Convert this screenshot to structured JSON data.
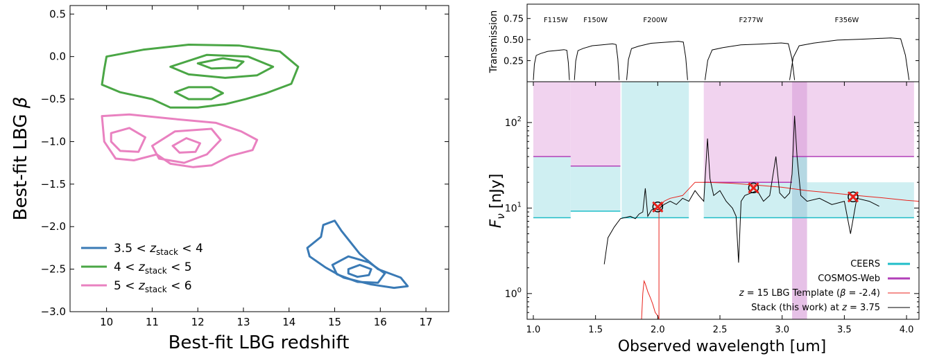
{
  "chart_data": [
    {
      "type": "contour",
      "xlabel": "Best-fit LBG redshift",
      "ylabel_prefix": "Best-fit LBG ",
      "ylabel_symbol": "β",
      "xlim": [
        9.2,
        17.5
      ],
      "ylim": [
        -3.0,
        0.6
      ],
      "xticks": [
        10,
        11,
        12,
        13,
        14,
        15,
        16,
        17
      ],
      "xtick_labels": [
        "10",
        "11",
        "12",
        "13",
        "14",
        "15",
        "16",
        "17"
      ],
      "yticks": [
        0.5,
        0.0,
        -0.5,
        -1.0,
        -1.5,
        -2.0,
        -2.5,
        -3.0
      ],
      "ytick_labels": [
        "0.5",
        "0.0",
        "−0.5",
        "−1.0",
        "−1.5",
        "−2.0",
        "−2.5",
        "−3.0"
      ],
      "legend_position": "lower-left",
      "series": [
        {
          "name": "3.5 < z_stack < 4",
          "label_pre": "3.5 < ",
          "label_var": "z",
          "label_sub": "stack",
          "label_post": " < 4",
          "color": "#3a7ab5",
          "levels": [
            [
              [
                14.4,
                -2.25
              ],
              [
                14.7,
                -2.12
              ],
              [
                14.75,
                -1.98
              ],
              [
                15.0,
                -1.93
              ],
              [
                15.15,
                -2.05
              ],
              [
                15.55,
                -2.32
              ],
              [
                15.95,
                -2.5
              ],
              [
                16.45,
                -2.6
              ],
              [
                16.6,
                -2.7
              ],
              [
                16.3,
                -2.72
              ],
              [
                15.8,
                -2.68
              ],
              [
                15.2,
                -2.6
              ],
              [
                14.8,
                -2.48
              ],
              [
                14.45,
                -2.35
              ]
            ],
            [
              [
                14.95,
                -2.45
              ],
              [
                15.3,
                -2.35
              ],
              [
                15.75,
                -2.42
              ],
              [
                16.1,
                -2.55
              ],
              [
                15.95,
                -2.66
              ],
              [
                15.5,
                -2.65
              ],
              [
                15.05,
                -2.56
              ]
            ],
            [
              [
                15.3,
                -2.5
              ],
              [
                15.55,
                -2.45
              ],
              [
                15.8,
                -2.5
              ],
              [
                15.75,
                -2.57
              ],
              [
                15.5,
                -2.59
              ],
              [
                15.3,
                -2.55
              ]
            ]
          ]
        },
        {
          "name": "4 < z_stack < 5",
          "label_pre": "4 < ",
          "label_var": "z",
          "label_sub": "stack",
          "label_post": " < 5",
          "color": "#4aa645",
          "levels": [
            [
              [
                10.0,
                0.0
              ],
              [
                10.8,
                0.08
              ],
              [
                11.8,
                0.14
              ],
              [
                12.9,
                0.13
              ],
              [
                13.8,
                0.06
              ],
              [
                14.2,
                -0.12
              ],
              [
                14.05,
                -0.32
              ],
              [
                13.5,
                -0.43
              ],
              [
                13.05,
                -0.5
              ],
              [
                12.6,
                -0.56
              ],
              [
                12.0,
                -0.6
              ],
              [
                11.4,
                -0.6
              ],
              [
                11.0,
                -0.5
              ],
              [
                10.3,
                -0.42
              ],
              [
                9.9,
                -0.33
              ],
              [
                9.95,
                -0.15
              ]
            ],
            [
              [
                11.4,
                -0.12
              ],
              [
                12.2,
                0.02
              ],
              [
                13.1,
                0.0
              ],
              [
                13.65,
                -0.12
              ],
              [
                13.3,
                -0.22
              ],
              [
                12.6,
                -0.25
              ],
              [
                11.8,
                -0.21
              ]
            ],
            [
              [
                12.0,
                -0.08
              ],
              [
                12.55,
                -0.02
              ],
              [
                13.0,
                -0.06
              ],
              [
                12.85,
                -0.13
              ],
              [
                12.3,
                -0.14
              ]
            ],
            [
              [
                11.5,
                -0.42
              ],
              [
                11.8,
                -0.36
              ],
              [
                12.3,
                -0.36
              ],
              [
                12.55,
                -0.43
              ],
              [
                12.3,
                -0.5
              ],
              [
                11.8,
                -0.5
              ]
            ]
          ]
        },
        {
          "name": "5 < z_stack < 6",
          "label_pre": "5 < ",
          "label_var": "z",
          "label_sub": "stack",
          "label_post": " < 6",
          "color": "#e981c0",
          "levels": [
            [
              [
                9.9,
                -0.7
              ],
              [
                10.5,
                -0.68
              ],
              [
                11.4,
                -0.73
              ],
              [
                12.4,
                -0.78
              ],
              [
                12.95,
                -0.88
              ],
              [
                13.3,
                -0.98
              ],
              [
                13.2,
                -1.1
              ],
              [
                12.7,
                -1.17
              ],
              [
                12.3,
                -1.28
              ],
              [
                11.9,
                -1.3
              ],
              [
                11.4,
                -1.26
              ],
              [
                11.1,
                -1.15
              ],
              [
                10.6,
                -1.22
              ],
              [
                10.2,
                -1.2
              ],
              [
                9.95,
                -1.0
              ]
            ],
            [
              [
                10.1,
                -0.9
              ],
              [
                10.5,
                -0.84
              ],
              [
                10.85,
                -0.95
              ],
              [
                10.7,
                -1.12
              ],
              [
                10.3,
                -1.11
              ],
              [
                10.1,
                -1.0
              ]
            ],
            [
              [
                11.0,
                -1.05
              ],
              [
                11.5,
                -0.88
              ],
              [
                12.3,
                -0.85
              ],
              [
                12.5,
                -0.98
              ],
              [
                12.2,
                -1.15
              ],
              [
                11.7,
                -1.25
              ],
              [
                11.15,
                -1.2
              ]
            ],
            [
              [
                11.45,
                -1.05
              ],
              [
                11.75,
                -0.96
              ],
              [
                12.05,
                -1.02
              ],
              [
                11.95,
                -1.12
              ],
              [
                11.6,
                -1.13
              ]
            ]
          ]
        }
      ]
    },
    {
      "type": "line",
      "panel": "transmission",
      "ylabel": "Transmission",
      "xlim": [
        0.95,
        4.1
      ],
      "ylim": [
        0.0,
        0.92
      ],
      "yticks": [
        0.25,
        0.5,
        0.75
      ],
      "ytick_labels": [
        "0.25",
        "0.50",
        "0.75"
      ],
      "filters": [
        {
          "name": "F115W",
          "label_x": 1.18,
          "edges": [
            1.0,
            1.29
          ],
          "level": 0.38
        },
        {
          "name": "F150W",
          "label_x": 1.5,
          "edges": [
            1.33,
            1.69
          ],
          "level": 0.45
        },
        {
          "name": "F200W",
          "label_x": 1.98,
          "edges": [
            1.75,
            2.24
          ],
          "level": 0.48
        },
        {
          "name": "F277W",
          "label_x": 2.75,
          "edges": [
            2.38,
            3.1
          ],
          "level": 0.46
        },
        {
          "name": "F356W",
          "label_x": 3.52,
          "edges": [
            3.06,
            4.02
          ],
          "level": 0.52
        }
      ]
    },
    {
      "type": "line",
      "panel": "sed",
      "xlabel": "Observed wavelength [um]",
      "ylabel_symbol": "F",
      "ylabel_sub": "ν",
      "ylabel_unit": " [nJy]",
      "xlim": [
        0.95,
        4.1
      ],
      "ylim_log": [
        0.5,
        300
      ],
      "xticks": [
        1.0,
        1.5,
        2.0,
        2.5,
        3.0,
        3.5,
        4.0
      ],
      "xtick_labels": [
        "1.0",
        "1.5",
        "2.0",
        "2.5",
        "3.0",
        "3.5",
        "4.0"
      ],
      "yticks": [
        1,
        10,
        100
      ],
      "ytick_base": "10",
      "ytick_exps": [
        "0",
        "1",
        "2"
      ],
      "legend_position": "lower-right",
      "depth_bands": {
        "CEERS": {
          "color": "#1fbdc8",
          "fill": "#cfeff2",
          "limits": [
            {
              "x": [
                1.0,
                1.3
              ],
              "y": 7.7
            },
            {
              "x": [
                1.3,
                1.7
              ],
              "y": 9.2
            },
            {
              "x": [
                1.71,
                2.25
              ],
              "y": 7.7
            },
            {
              "x": [
                2.37,
                4.06
              ],
              "y": 7.7
            }
          ]
        },
        "COSMOS-Web": {
          "color": "#b23fb8",
          "fill": "#f1d3ef",
          "limits": [
            {
              "x": [
                1.0,
                1.3
              ],
              "y": 40
            },
            {
              "x": [
                1.3,
                1.7
              ],
              "y": 31
            },
            {
              "x": [
                2.37,
                3.08
              ],
              "y": 20
            },
            {
              "x": [
                3.08,
                4.06
              ],
              "y": 40
            }
          ]
        },
        "overlap_band": [
          3.08,
          3.2
        ]
      },
      "markers": [
        {
          "x": 2.0,
          "y": 10.3
        },
        {
          "x": 2.77,
          "y": 17.2
        },
        {
          "x": 3.57,
          "y": 13.5
        }
      ],
      "template": {
        "name": "z = 15 LBG Template (β = -2.4)",
        "color": "#e8221c",
        "points": [
          [
            1.87,
            0.5
          ],
          [
            1.88,
            1.0
          ],
          [
            1.89,
            1.4
          ],
          [
            1.9,
            1.3
          ],
          [
            1.92,
            1.05
          ],
          [
            1.94,
            0.9
          ],
          [
            1.96,
            0.75
          ],
          [
            1.98,
            0.6
          ],
          [
            2.0,
            0.55
          ],
          [
            2.01,
            0.5
          ],
          [
            2.01,
            9.5
          ],
          [
            2.05,
            12
          ],
          [
            2.1,
            13
          ],
          [
            2.2,
            14
          ],
          [
            2.3,
            20
          ],
          [
            2.4,
            20
          ],
          [
            2.6,
            19.5
          ],
          [
            2.8,
            18.5
          ],
          [
            3.0,
            17.5
          ],
          [
            3.2,
            16
          ],
          [
            3.4,
            15
          ],
          [
            3.6,
            14
          ],
          [
            3.8,
            13.2
          ],
          [
            4.0,
            12.3
          ],
          [
            4.1,
            12
          ]
        ]
      },
      "stack": {
        "name": "Stack (this work) at z = 3.75",
        "color": "#000000",
        "points": [
          [
            1.57,
            2.2
          ],
          [
            1.6,
            4.5
          ],
          [
            1.65,
            6
          ],
          [
            1.7,
            7.5
          ],
          [
            1.78,
            8
          ],
          [
            1.82,
            7.5
          ],
          [
            1.85,
            8.5
          ],
          [
            1.88,
            9
          ],
          [
            1.9,
            17
          ],
          [
            1.92,
            8
          ],
          [
            1.95,
            9.5
          ],
          [
            1.98,
            10
          ],
          [
            2.0,
            9.5
          ],
          [
            2.05,
            11
          ],
          [
            2.1,
            12
          ],
          [
            2.15,
            11
          ],
          [
            2.2,
            13
          ],
          [
            2.25,
            12
          ],
          [
            2.3,
            16
          ],
          [
            2.33,
            14
          ],
          [
            2.37,
            12
          ],
          [
            2.4,
            65
          ],
          [
            2.42,
            22
          ],
          [
            2.45,
            14
          ],
          [
            2.5,
            16
          ],
          [
            2.55,
            12
          ],
          [
            2.6,
            10
          ],
          [
            2.63,
            8
          ],
          [
            2.65,
            2.3
          ],
          [
            2.67,
            12
          ],
          [
            2.7,
            14
          ],
          [
            2.75,
            15
          ],
          [
            2.8,
            16
          ],
          [
            2.85,
            12
          ],
          [
            2.9,
            14
          ],
          [
            2.95,
            40
          ],
          [
            2.98,
            15
          ],
          [
            3.02,
            13
          ],
          [
            3.06,
            15
          ],
          [
            3.08,
            25
          ],
          [
            3.1,
            120
          ],
          [
            3.12,
            40
          ],
          [
            3.15,
            14
          ],
          [
            3.2,
            12
          ],
          [
            3.3,
            13
          ],
          [
            3.4,
            11
          ],
          [
            3.5,
            12
          ],
          [
            3.55,
            5
          ],
          [
            3.6,
            13
          ],
          [
            3.7,
            12
          ],
          [
            3.78,
            10.5
          ]
        ]
      },
      "legend_entries": [
        "CEERS",
        "COSMOS-Web",
        "z = 15 LBG Template (β = -2.4)",
        "Stack (this work) at z = 3.75"
      ],
      "legend": {
        "ceers": "CEERS",
        "cosmos": "COSMOS-Web",
        "template_var": "z",
        "template_pre": " = 15 LBG Template (",
        "template_beta": "β",
        "template_post": " = -2.4)",
        "stack_pre": "Stack (this work) at ",
        "stack_var": "z",
        "stack_post": " = 3.75"
      }
    }
  ]
}
